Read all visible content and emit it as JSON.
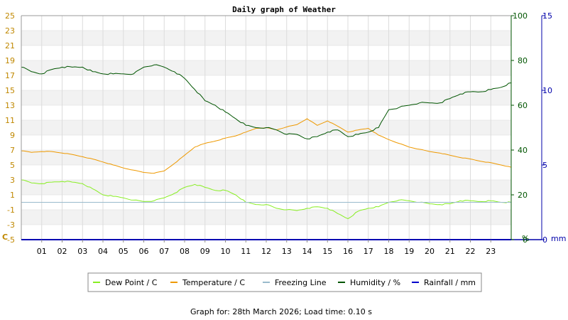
{
  "title": "Daily graph of Weather",
  "footer": "Graph for: 28th March 2026; Load time: 0.10 s",
  "colors": {
    "dew_point": "#88ee22",
    "temperature": "#ee9900",
    "freezing": "#99bbcc",
    "humidity": "#005500",
    "rainfall": "#0000cc",
    "left_axis": "#c08800",
    "right_axis_pct": "#005500",
    "right_axis_mm": "#0000aa",
    "band": "#f2f2f2",
    "grid": "#dcdcdc"
  },
  "chart_data": {
    "type": "line",
    "title": "Daily graph of Weather",
    "x_tick_labels": [
      "01",
      "02",
      "03",
      "04",
      "05",
      "06",
      "07",
      "08",
      "09",
      "10",
      "11",
      "12",
      "13",
      "14",
      "15",
      "16",
      "17",
      "18",
      "19",
      "20",
      "21",
      "22",
      "23"
    ],
    "xlim": [
      0,
      24
    ],
    "left_axis": {
      "unit": "C",
      "range": [
        -5,
        25
      ],
      "ticks": [
        "-5",
        "-3",
        "-1",
        "1",
        "3",
        "5",
        "7",
        "9",
        "11",
        "13",
        "15",
        "17",
        "19",
        "21",
        "23",
        "25"
      ]
    },
    "right_axis_pct": {
      "unit": "%",
      "range": [
        0,
        100
      ],
      "ticks": [
        "0",
        "20",
        "40",
        "60",
        "80",
        "100"
      ]
    },
    "right_axis_mm": {
      "unit": "mm",
      "range": [
        0,
        15
      ],
      "ticks": [
        "0",
        "5",
        "10",
        "15"
      ]
    },
    "grid": true,
    "legend_position": "bottom",
    "series": [
      {
        "name": "Dew Point / C",
        "axis": "left",
        "color": "#88ee22",
        "x": [
          0,
          0.5,
          1,
          1.5,
          2,
          2.5,
          3,
          3.5,
          4,
          4.5,
          5,
          5.5,
          6,
          6.5,
          7,
          7.5,
          8,
          8.5,
          9,
          9.5,
          10,
          10.5,
          11,
          11.5,
          12,
          12.5,
          13,
          13.5,
          14,
          14.5,
          15,
          15.5,
          16,
          16.5,
          17,
          17.5,
          18,
          18.5,
          19,
          19.5,
          20,
          20.5,
          21,
          21.5,
          22,
          22.5,
          23,
          23.5,
          24
        ],
        "y": [
          3.0,
          2.6,
          2.5,
          2.7,
          2.8,
          2.7,
          2.5,
          1.8,
          1.0,
          0.8,
          0.6,
          0.3,
          0.1,
          0.2,
          0.6,
          1.2,
          2.0,
          2.4,
          2.0,
          1.6,
          1.6,
          1.0,
          0.0,
          -0.3,
          -0.3,
          -0.8,
          -1.0,
          -1.1,
          -0.8,
          -0.6,
          -0.8,
          -1.5,
          -2.2,
          -1.2,
          -0.8,
          -0.6,
          0.0,
          0.3,
          0.2,
          0.0,
          -0.2,
          -0.3,
          -0.2,
          0.2,
          0.2,
          0.1,
          0.2,
          0.0,
          0.0
        ]
      },
      {
        "name": "Temperature / C",
        "axis": "left",
        "color": "#ee9900",
        "x": [
          0,
          0.5,
          1,
          1.5,
          2,
          2.5,
          3,
          3.5,
          4,
          4.5,
          5,
          5.5,
          6,
          6.5,
          7,
          7.5,
          8,
          8.5,
          9,
          9.5,
          10,
          10.5,
          11,
          11.5,
          12,
          12.5,
          13,
          13.5,
          14,
          14.5,
          15,
          15.5,
          16,
          16.5,
          17,
          17.5,
          18,
          18.5,
          19,
          19.5,
          20,
          20.5,
          21,
          21.5,
          22,
          22.5,
          23,
          23.5,
          24
        ],
        "y": [
          6.9,
          6.7,
          6.8,
          6.8,
          6.6,
          6.4,
          6.1,
          5.8,
          5.4,
          5.0,
          4.6,
          4.3,
          4.0,
          3.9,
          4.2,
          5.2,
          6.3,
          7.4,
          7.9,
          8.2,
          8.6,
          8.9,
          9.4,
          9.9,
          10.0,
          9.7,
          10.1,
          10.4,
          11.2,
          10.3,
          10.9,
          10.2,
          9.4,
          9.7,
          9.9,
          9.0,
          8.4,
          7.9,
          7.4,
          7.1,
          6.8,
          6.6,
          6.3,
          6.0,
          5.8,
          5.5,
          5.3,
          5.0,
          4.7
        ]
      },
      {
        "name": "Freezing Line",
        "axis": "left",
        "color": "#99bbcc",
        "x": [
          0,
          24
        ],
        "y": [
          0,
          0
        ]
      },
      {
        "name": "Humidity / %",
        "axis": "right_pct",
        "color": "#005500",
        "x": [
          0,
          0.5,
          1,
          1.5,
          2,
          2.5,
          3,
          3.5,
          4,
          4.5,
          5,
          5.5,
          6,
          6.5,
          7,
          7.5,
          8,
          8.5,
          9,
          9.5,
          10,
          10.5,
          11,
          11.5,
          12,
          12.5,
          13,
          13.5,
          14,
          14.5,
          15,
          15.5,
          16,
          16.5,
          17,
          17.5,
          18,
          18.5,
          19,
          19.5,
          20,
          20.5,
          21,
          21.5,
          22,
          22.5,
          23,
          23.5,
          24
        ],
        "y": [
          77,
          75,
          74,
          76,
          77,
          77,
          77,
          75,
          74,
          74,
          74,
          74,
          77,
          78,
          77,
          75,
          72,
          67,
          62,
          60,
          57,
          54,
          51,
          50,
          50,
          49,
          47,
          47,
          45,
          46,
          48,
          49,
          46,
          47,
          48,
          50,
          58,
          59,
          60,
          61,
          61,
          61,
          63,
          65,
          66,
          66,
          67,
          68,
          70
        ]
      },
      {
        "name": "Rainfall / mm",
        "axis": "right_mm",
        "color": "#0000cc",
        "x": [
          0,
          24
        ],
        "y": [
          0,
          0
        ]
      }
    ]
  }
}
